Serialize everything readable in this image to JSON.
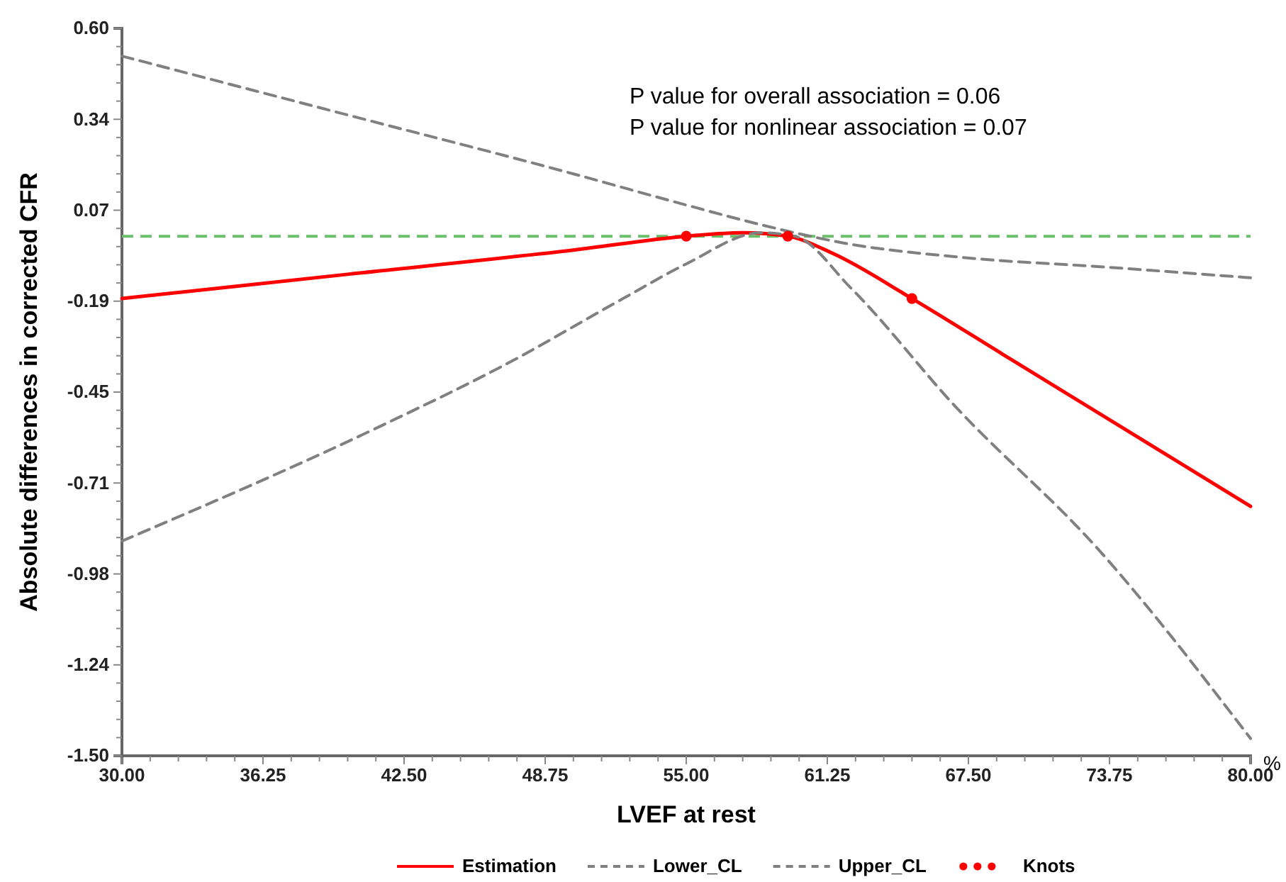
{
  "chart_data": {
    "type": "line",
    "xlabel": "LVEF at rest",
    "ylabel": "Absolute differences in corrected CFR",
    "annotations": [
      {
        "text": "P value for overall association = 0.06"
      },
      {
        "text": "P value for nonlinear association = 0.07"
      },
      {
        "text": "%"
      }
    ],
    "xlim": [
      30,
      80
    ],
    "ylim": [
      -1.5,
      0.6
    ],
    "xticks": [
      {
        "value": 30,
        "label": "30.00"
      },
      {
        "value": 31.25,
        "label": null
      },
      {
        "value": 32.5,
        "label": null
      },
      {
        "value": 33.75,
        "label": null
      },
      {
        "value": 35,
        "label": null
      },
      {
        "value": 36.25,
        "label": "36.25"
      },
      {
        "value": 37.5,
        "label": null
      },
      {
        "value": 38.75,
        "label": null
      },
      {
        "value": 40,
        "label": null
      },
      {
        "value": 41.25,
        "label": null
      },
      {
        "value": 42.5,
        "label": "42.50"
      },
      {
        "value": 43.75,
        "label": null
      },
      {
        "value": 45,
        "label": null
      },
      {
        "value": 46.25,
        "label": null
      },
      {
        "value": 47.5,
        "label": null
      },
      {
        "value": 48.75,
        "label": "48.75"
      },
      {
        "value": 50,
        "label": null
      },
      {
        "value": 51.25,
        "label": null
      },
      {
        "value": 52.5,
        "label": null
      },
      {
        "value": 53.75,
        "label": null
      },
      {
        "value": 55,
        "label": "55.00"
      },
      {
        "value": 56.25,
        "label": null
      },
      {
        "value": 57.5,
        "label": null
      },
      {
        "value": 58.75,
        "label": null
      },
      {
        "value": 60,
        "label": null
      },
      {
        "value": 61.25,
        "label": "61.25"
      },
      {
        "value": 62.5,
        "label": null
      },
      {
        "value": 63.75,
        "label": null
      },
      {
        "value": 65,
        "label": null
      },
      {
        "value": 66.25,
        "label": null
      },
      {
        "value": 67.5,
        "label": "67.50"
      },
      {
        "value": 68.75,
        "label": null
      },
      {
        "value": 70,
        "label": null
      },
      {
        "value": 71.25,
        "label": null
      },
      {
        "value": 72.5,
        "label": null
      },
      {
        "value": 73.75,
        "label": "73.75"
      },
      {
        "value": 75,
        "label": null
      },
      {
        "value": 76.25,
        "label": null
      },
      {
        "value": 77.5,
        "label": null
      },
      {
        "value": 78.75,
        "label": null
      },
      {
        "value": 80,
        "label": "80.00"
      }
    ],
    "yticks": [
      {
        "value": 0.6,
        "label": "0.60"
      },
      {
        "value": 0.5475,
        "label": null
      },
      {
        "value": 0.495,
        "label": null
      },
      {
        "value": 0.4425,
        "label": null
      },
      {
        "value": 0.39,
        "label": null
      },
      {
        "value": 0.3375,
        "label": "0.34"
      },
      {
        "value": 0.285,
        "label": null
      },
      {
        "value": 0.2325,
        "label": null
      },
      {
        "value": 0.18,
        "label": null
      },
      {
        "value": 0.1275,
        "label": null
      },
      {
        "value": 0.075,
        "label": "0.07"
      },
      {
        "value": 0.0225,
        "label": null
      },
      {
        "value": -0.03,
        "label": null
      },
      {
        "value": -0.0825,
        "label": null
      },
      {
        "value": -0.135,
        "label": null
      },
      {
        "value": -0.1875,
        "label": "-0.19"
      },
      {
        "value": -0.24,
        "label": null
      },
      {
        "value": -0.2925,
        "label": null
      },
      {
        "value": -0.345,
        "label": null
      },
      {
        "value": -0.3975,
        "label": null
      },
      {
        "value": -0.45,
        "label": "-0.45"
      },
      {
        "value": -0.5025,
        "label": null
      },
      {
        "value": -0.555,
        "label": null
      },
      {
        "value": -0.6075,
        "label": null
      },
      {
        "value": -0.66,
        "label": null
      },
      {
        "value": -0.7125,
        "label": "-0.71"
      },
      {
        "value": -0.765,
        "label": null
      },
      {
        "value": -0.8175,
        "label": null
      },
      {
        "value": -0.87,
        "label": null
      },
      {
        "value": -0.9225,
        "label": null
      },
      {
        "value": -0.975,
        "label": "-0.98"
      },
      {
        "value": -1.0275,
        "label": null
      },
      {
        "value": -1.08,
        "label": null
      },
      {
        "value": -1.1325,
        "label": null
      },
      {
        "value": -1.185,
        "label": null
      },
      {
        "value": -1.2375,
        "label": "-1.24"
      },
      {
        "value": -1.29,
        "label": null
      },
      {
        "value": -1.3425,
        "label": null
      },
      {
        "value": -1.395,
        "label": null
      },
      {
        "value": -1.4475,
        "label": null
      },
      {
        "value": -1.5,
        "label": "-1.50"
      }
    ],
    "ref_lines": [
      {
        "axis": "y",
        "value": 0,
        "color": "#6abf69",
        "line_style": "dashed"
      }
    ],
    "legend": "bottom",
    "series": [
      {
        "name": "Estimation",
        "color": "#ff0000",
        "line_style": "solid",
        "x": [
          30,
          40,
          50,
          55,
          57.5,
          59.5,
          61.5,
          65,
          69,
          80
        ],
        "values": [
          -0.18,
          -0.11,
          -0.04,
          0.0,
          0.01,
          0.0,
          -0.05,
          -0.18,
          -0.34,
          -0.78
        ]
      },
      {
        "name": "Lower_CL",
        "color": "#808080",
        "line_style": "dashed",
        "x": [
          30,
          41.4,
          47,
          52.2,
          55,
          58.3,
          59.8,
          62.3,
          66.9,
          73.2,
          80
        ],
        "values": [
          -0.88,
          -0.55,
          -0.37,
          -0.18,
          -0.08,
          0.01,
          0.0,
          -0.15,
          -0.49,
          -0.9,
          -1.45
        ]
      },
      {
        "name": "Upper_CL",
        "color": "#808080",
        "line_style": "dashed",
        "x": [
          30,
          40,
          50,
          55,
          58.5,
          59.8,
          62,
          67,
          73.75,
          80
        ],
        "values": [
          0.52,
          0.35,
          0.18,
          0.09,
          0.03,
          0.01,
          -0.02,
          -0.06,
          -0.09,
          -0.12
        ]
      },
      {
        "name": "Knots",
        "type": "scatter",
        "color": "#ff0000",
        "marker": "circle",
        "x": [
          55,
          59.5,
          65
        ],
        "values": [
          0.0,
          0.0,
          -0.18
        ]
      }
    ]
  }
}
